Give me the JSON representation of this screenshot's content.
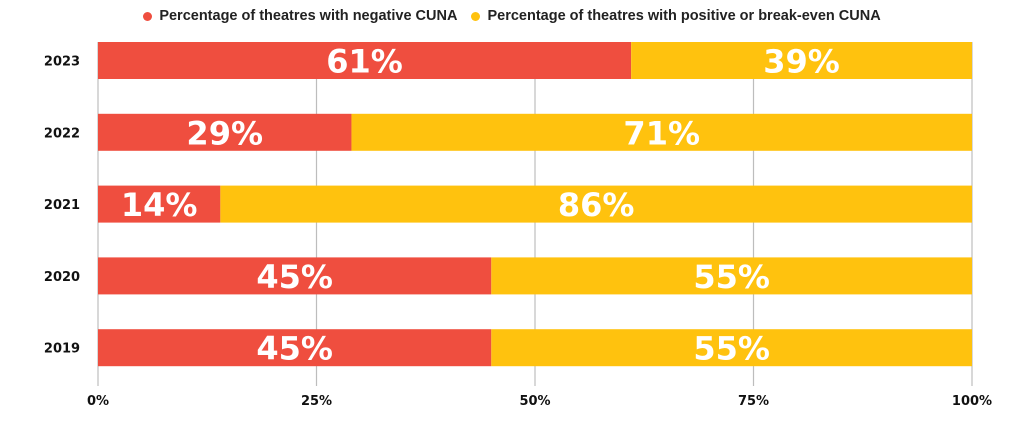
{
  "chart_data": {
    "type": "bar",
    "orientation": "horizontal",
    "stacked": true,
    "title": "",
    "xlabel": "",
    "ylabel": "",
    "categories": [
      "2023",
      "2022",
      "2021",
      "2020",
      "2019"
    ],
    "series": [
      {
        "name": "Percentage of theatres with negative CUNA",
        "color": "#EF4E3F",
        "values": [
          61,
          29,
          14,
          45,
          45
        ],
        "labels": [
          "61%",
          "29%",
          "14%",
          "45%",
          "45%"
        ]
      },
      {
        "name": "Percentage of theatres with positive or break-even CUNA",
        "color": "#FFC20E",
        "values": [
          39,
          71,
          86,
          55,
          55
        ],
        "labels": [
          "39%",
          "71%",
          "86%",
          "55%",
          "55%"
        ]
      }
    ],
    "xlim": [
      0,
      100
    ],
    "xticks": [
      0,
      25,
      50,
      75,
      100
    ],
    "xtick_labels": [
      "0%",
      "25%",
      "50%",
      "75%",
      "100%"
    ],
    "grid": "vertical",
    "legend_position": "top-center"
  }
}
